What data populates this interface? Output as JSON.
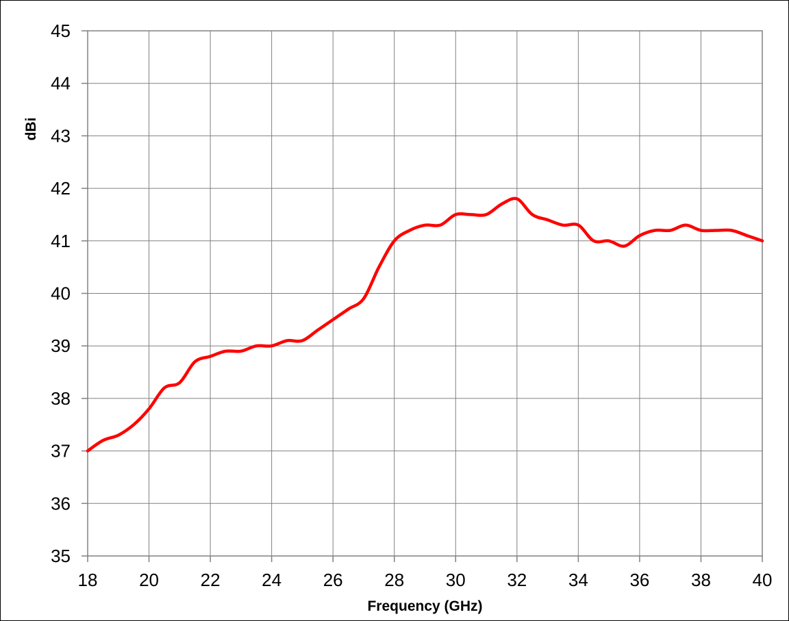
{
  "chart_data": {
    "type": "line",
    "title": "",
    "xlabel": "Frequency (GHz)",
    "ylabel": "dBi",
    "xlim": [
      18,
      40
    ],
    "ylim": [
      35,
      45
    ],
    "xticks": [
      18,
      20,
      22,
      24,
      26,
      28,
      30,
      32,
      34,
      36,
      38,
      40
    ],
    "yticks": [
      35,
      36,
      37,
      38,
      39,
      40,
      41,
      42,
      43,
      44,
      45
    ],
    "xtick_labels": [
      "18",
      "20",
      "22",
      "24",
      "26",
      "28",
      "30",
      "32",
      "34",
      "36",
      "38",
      "40"
    ],
    "ytick_labels": [
      "35",
      "36",
      "37",
      "38",
      "39",
      "40",
      "41",
      "42",
      "43",
      "44",
      "45"
    ],
    "grid": true,
    "legend": "none",
    "series": [
      {
        "color": "#ff0000",
        "x": [
          18,
          18.5,
          19,
          19.5,
          20,
          20.5,
          21,
          21.5,
          22,
          22.5,
          23,
          23.5,
          24,
          24.5,
          25,
          25.5,
          26,
          26.5,
          27,
          27.5,
          28,
          28.5,
          29,
          29.5,
          30,
          30.5,
          31,
          31.5,
          32,
          32.5,
          33,
          33.5,
          34,
          34.5,
          35,
          35.5,
          36,
          36.5,
          37,
          37.5,
          38,
          38.5,
          39,
          39.5,
          40
        ],
        "y": [
          37.0,
          37.2,
          37.3,
          37.5,
          37.8,
          38.2,
          38.3,
          38.7,
          38.8,
          38.9,
          38.9,
          39.0,
          39.0,
          39.1,
          39.1,
          39.3,
          39.5,
          39.7,
          39.9,
          40.5,
          41.0,
          41.2,
          41.3,
          41.3,
          41.5,
          41.5,
          41.5,
          41.7,
          41.8,
          41.5,
          41.4,
          41.3,
          41.3,
          41.0,
          41.0,
          40.9,
          41.1,
          41.2,
          41.2,
          41.3,
          41.2,
          41.2,
          41.2,
          41.1,
          41.0
        ]
      }
    ]
  }
}
